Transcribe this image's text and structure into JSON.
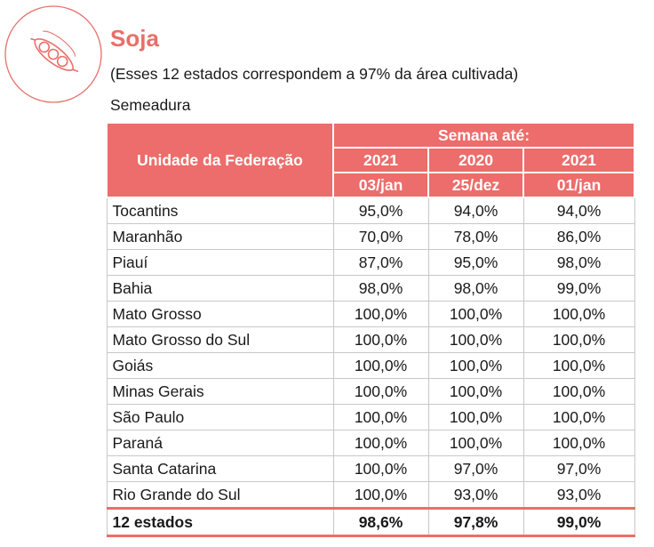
{
  "header": {
    "title": "Soja",
    "subtitle": "(Esses 12 estados correspondem a 97% da área cultivada)",
    "section_label": "Semeadura",
    "icon": "soybean-pod-icon"
  },
  "table": {
    "uf_header": "Unidade da Federação",
    "week_header": "Semana até:",
    "columns": [
      {
        "year": "2021",
        "date": "03/jan"
      },
      {
        "year": "2020",
        "date": "25/dez"
      },
      {
        "year": "2021",
        "date": "01/jan"
      }
    ],
    "rows": [
      {
        "state": "Tocantins",
        "values": [
          "95,0%",
          "94,0%",
          "94,0%"
        ]
      },
      {
        "state": "Maranhão",
        "values": [
          "70,0%",
          "78,0%",
          "86,0%"
        ]
      },
      {
        "state": "Piauí",
        "values": [
          "87,0%",
          "95,0%",
          "98,0%"
        ]
      },
      {
        "state": "Bahia",
        "values": [
          "98,0%",
          "98,0%",
          "99,0%"
        ]
      },
      {
        "state": "Mato Grosso",
        "values": [
          "100,0%",
          "100,0%",
          "100,0%"
        ]
      },
      {
        "state": "Mato Grosso do Sul",
        "values": [
          "100,0%",
          "100,0%",
          "100,0%"
        ]
      },
      {
        "state": "Goiás",
        "values": [
          "100,0%",
          "100,0%",
          "100,0%"
        ]
      },
      {
        "state": "Minas Gerais",
        "values": [
          "100,0%",
          "100,0%",
          "100,0%"
        ]
      },
      {
        "state": "São Paulo",
        "values": [
          "100,0%",
          "100,0%",
          "100,0%"
        ]
      },
      {
        "state": "Paraná",
        "values": [
          "100,0%",
          "100,0%",
          "100,0%"
        ]
      },
      {
        "state": "Santa Catarina",
        "values": [
          "100,0%",
          "97,0%",
          "97,0%"
        ]
      },
      {
        "state": "Rio Grande do Sul",
        "values": [
          "100,0%",
          "93,0%",
          "93,0%"
        ]
      }
    ],
    "total": {
      "state": "12 estados",
      "values": [
        "98,6%",
        "97,8%",
        "99,0%"
      ]
    }
  },
  "colors": {
    "accent": "#e86f6a",
    "header_fill": "#ec6d6b"
  }
}
